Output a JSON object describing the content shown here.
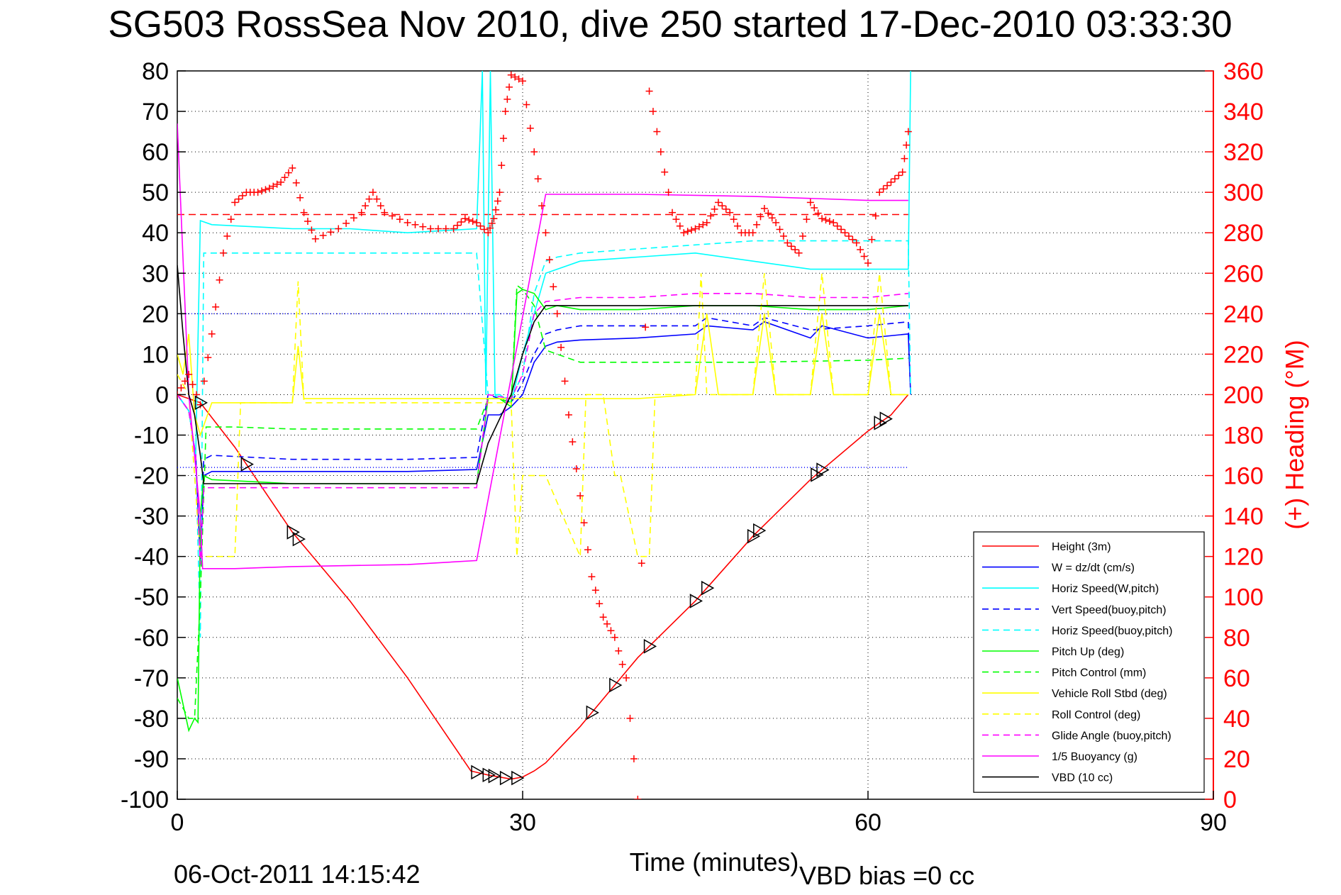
{
  "chart_data": {
    "type": "line",
    "title": "SG503 RossSea Nov 2010, dive 250 started 17-Dec-2010 03:33:30",
    "xlabel": "Time (minutes)",
    "ylabel_right": "(+) Heading (°M)",
    "xlim": [
      0,
      90
    ],
    "ylim": [
      -100,
      80
    ],
    "ylim_right": [
      0,
      360
    ],
    "xticks": [
      "0",
      "30",
      "60",
      "90"
    ],
    "yticks": [
      "80",
      "70",
      "60",
      "50",
      "40",
      "30",
      "20",
      "10",
      "0",
      "-10",
      "-20",
      "-30",
      "-40",
      "-50",
      "-60",
      "-70",
      "-80",
      "-90",
      "-100"
    ],
    "yticks_right": [
      "360",
      "340",
      "320",
      "300",
      "280",
      "260",
      "240",
      "220",
      "200",
      "180",
      "160",
      "140",
      "120",
      "100",
      "80",
      "60",
      "40",
      "20",
      "0"
    ],
    "grid": "dotted, on",
    "legend_position": "bottom-right",
    "footer_left": "06-Oct-2011 14:15:42",
    "footer_right": "VBD bias =0 cc",
    "reference_lines": [
      {
        "series": "heading-target",
        "axis": "right",
        "value": 289,
        "color": "#ff0000",
        "dash": true
      },
      {
        "series": "horizontal-guide",
        "axis": "left",
        "value": 20,
        "color": "#0000ff",
        "dotted": true
      },
      {
        "series": "horizontal-guide",
        "axis": "left",
        "value": -18,
        "color": "#0000ff",
        "dotted": true
      }
    ],
    "series": [
      {
        "name": "Height (3m)",
        "color": "#ff0000",
        "dash": false,
        "x": [
          0,
          1,
          2,
          5,
          10,
          15,
          20,
          25.5,
          27,
          29,
          30,
          31,
          32,
          35,
          40,
          45,
          50,
          55,
          60,
          62,
          63.5
        ],
        "y": [
          0,
          -1,
          -2,
          -13,
          -34,
          -51,
          -70,
          -93,
          -94,
          -95,
          -94.5,
          -93,
          -91,
          -82,
          -65,
          -51,
          -35,
          -21,
          -9,
          -5,
          0
        ]
      },
      {
        "name": "W = dz/dt (cm/s)",
        "color": "#0000ff",
        "dash": false,
        "x": [
          0,
          1,
          1.6,
          2,
          2.3,
          3,
          10,
          20,
          26,
          27,
          28,
          29,
          30,
          31,
          32,
          33,
          35,
          40,
          45,
          46,
          50,
          51,
          55,
          56,
          60,
          63.5,
          63.7
        ],
        "y": [
          0,
          -4,
          -15,
          -42,
          -20,
          -19,
          -19,
          -19,
          -18.5,
          -5,
          -5,
          -3,
          0,
          8,
          12,
          13,
          13.5,
          14,
          15,
          17,
          16,
          18,
          14,
          17,
          14,
          15,
          0
        ]
      },
      {
        "name": "Horiz Speed(W,pitch)",
        "color": "#00ffff",
        "dash": false,
        "x": [
          0,
          1,
          1.6,
          2,
          3,
          10,
          15,
          20,
          26,
          26.5,
          26.8,
          27.2,
          27.6,
          28,
          29,
          30,
          31,
          32,
          35,
          40,
          45,
          50,
          55,
          60,
          63.5,
          63.7
        ],
        "y": [
          0,
          -4,
          -15,
          43,
          42,
          41,
          41,
          40,
          41,
          80,
          0,
          80,
          0,
          0,
          -2,
          10,
          20,
          30,
          33,
          34,
          35,
          33,
          31,
          31,
          31,
          80
        ]
      },
      {
        "name": "Vert Speed(buoy,pitch)",
        "color": "#0000ff",
        "dash": true,
        "x": [
          0,
          1,
          1.6,
          2,
          2.3,
          3,
          10,
          20,
          26,
          27,
          29,
          30,
          31,
          32,
          33,
          35,
          40,
          45,
          46,
          50,
          51,
          55,
          60,
          63.5,
          63.7
        ],
        "y": [
          0,
          -4,
          -15,
          -40,
          -16,
          -15,
          -16,
          -16,
          -15.5,
          0,
          -2,
          3,
          10,
          15,
          16,
          17,
          17,
          17,
          19,
          17,
          19,
          16,
          17,
          18,
          0
        ]
      },
      {
        "name": "Horiz Speed(buoy,pitch)",
        "color": "#00ffff",
        "dash": true,
        "x": [
          0,
          1,
          1.6,
          2,
          2.3,
          3,
          10,
          20,
          26,
          27,
          29,
          30,
          31,
          32,
          33,
          35,
          40,
          45,
          50,
          55,
          60,
          63.5,
          63.7
        ],
        "y": [
          0,
          -4,
          -15,
          -60,
          35,
          35,
          35,
          35,
          35,
          0,
          -1,
          5,
          25,
          33,
          34,
          35,
          36,
          37,
          38,
          38,
          38,
          38,
          0
        ]
      },
      {
        "name": "Pitch Up (deg)",
        "color": "#00ff00",
        "dash": false,
        "x": [
          0,
          1,
          1.5,
          1.8,
          2,
          2.3,
          3,
          10,
          20,
          26,
          27,
          28,
          29,
          29.5,
          30,
          31,
          32,
          33,
          35,
          40,
          45,
          50,
          55,
          60,
          63.5
        ],
        "y": [
          -70,
          -83,
          -80,
          -81,
          -30,
          -20,
          -21,
          -22,
          -22,
          -22,
          -1,
          -1,
          -3,
          25,
          26,
          25,
          21,
          22,
          21,
          21,
          22,
          22,
          21,
          21,
          22
        ]
      },
      {
        "name": "Pitch Control (mm)",
        "color": "#00ff00",
        "dash": true,
        "x": [
          0,
          1,
          1.5,
          2,
          2.5,
          5,
          10,
          20,
          26,
          27,
          28,
          29,
          29.5,
          30,
          31,
          32,
          35,
          40,
          50,
          60,
          63.5
        ],
        "y": [
          -75,
          -80,
          -80,
          -50,
          -8,
          -8,
          -8.5,
          -8.5,
          -8.5,
          -1,
          -1,
          -2,
          27,
          26,
          22,
          11,
          8,
          8,
          8,
          8.5,
          9
        ]
      },
      {
        "name": "Vehicle Roll Stbd (deg)",
        "color": "#ffff00",
        "dash": false,
        "x": [
          0,
          0.5,
          1,
          1.5,
          2,
          3,
          5,
          10,
          10.5,
          11,
          20,
          26,
          28,
          29,
          30,
          35,
          40,
          45,
          46,
          47,
          50,
          51,
          52,
          55,
          56,
          57,
          60,
          61,
          62,
          63.5
        ],
        "y": [
          10,
          5,
          15,
          -5,
          -10,
          -2,
          -2,
          -2,
          12,
          -1,
          -1,
          -1,
          -1,
          -1,
          -1,
          -1,
          -1,
          0,
          20,
          0,
          0,
          20,
          0,
          0,
          20,
          0,
          0,
          20,
          0,
          0
        ]
      },
      {
        "name": "Roll Control (deg)",
        "color": "#ffff00",
        "dash": true,
        "x": [
          0,
          1,
          2,
          3,
          5,
          5.5,
          10,
          10.5,
          11,
          20,
          26,
          29,
          29.5,
          30,
          32,
          35,
          35.5,
          37,
          38,
          38.5,
          40,
          41,
          41.5,
          45,
          45.5,
          46,
          50,
          51,
          52,
          55,
          56,
          57,
          60,
          61,
          62,
          63.5
        ],
        "y": [
          5,
          0,
          -40,
          -40,
          -40,
          -2,
          -2,
          28,
          -2,
          -2,
          -2,
          -2,
          -40,
          -20,
          -20,
          -40,
          0,
          0,
          -20,
          -20,
          -40,
          -40,
          0,
          0,
          30,
          0,
          0,
          30,
          0,
          0,
          30,
          0,
          0,
          30,
          0,
          0
        ]
      },
      {
        "name": "Glide Angle (buoy,pitch)",
        "color": "#ff00ff",
        "dash": true,
        "x": [
          0,
          1,
          1.6,
          2,
          2.3,
          3,
          10,
          20,
          26,
          27,
          29,
          30,
          31,
          32,
          35,
          40,
          45,
          50,
          55,
          60,
          63.5
        ],
        "y": [
          0,
          -4,
          -15,
          -42,
          -23,
          -23,
          -23,
          -23,
          -23,
          0,
          -1,
          5,
          20,
          23,
          24,
          24,
          25,
          25,
          24,
          24,
          25
        ]
      },
      {
        "name": "1/5 Buoyancy (g)",
        "color": "#ff00ff",
        "dash": false,
        "x": [
          0,
          1,
          2,
          2.2,
          5,
          10,
          20,
          26,
          32,
          40,
          50,
          60,
          63.5
        ],
        "y": [
          67,
          0,
          -30,
          -43,
          -43,
          -42.5,
          -42,
          -41,
          49.5,
          49.5,
          49,
          48,
          48
        ]
      },
      {
        "name": "VBD (10 cc)",
        "color": "#000000",
        "dash": false,
        "x": [
          0,
          0.5,
          1,
          1.5,
          2,
          2.3,
          3,
          10,
          20,
          26,
          27,
          29,
          30,
          31,
          32,
          35,
          40,
          50,
          60,
          63.5
        ],
        "y": [
          32,
          15,
          0,
          -5,
          -15,
          -22,
          -22,
          -22,
          -22,
          -22,
          -12,
          0,
          10,
          18,
          22,
          22,
          22,
          22,
          22,
          22
        ]
      }
    ],
    "heading": {
      "name": "(+) Heading",
      "axis": "right",
      "color": "#ff0000",
      "marker": "+",
      "x": [
        0,
        1,
        2,
        3,
        4,
        5,
        6,
        7,
        8,
        9,
        10,
        11,
        12,
        14,
        16,
        17,
        18,
        20,
        22,
        24,
        25,
        26,
        27,
        27.5,
        28,
        28.5,
        29,
        30,
        31,
        32,
        33,
        34,
        35,
        36,
        37,
        38,
        39,
        40,
        41,
        42,
        43,
        44,
        45,
        46,
        47,
        48,
        49,
        50,
        51,
        52,
        53,
        54,
        55,
        56,
        57,
        58,
        59,
        60,
        61,
        62,
        63,
        63.5
      ],
      "y": [
        200,
        210,
        195,
        230,
        270,
        295,
        300,
        300,
        302,
        305,
        312,
        290,
        277,
        282,
        290,
        300,
        290,
        285,
        282,
        282,
        287,
        285,
        280,
        287,
        300,
        340,
        358,
        355,
        320,
        280,
        240,
        190,
        150,
        110,
        90,
        80,
        60,
        0,
        350,
        320,
        290,
        280,
        282,
        285,
        295,
        290,
        280,
        280,
        292,
        285,
        275,
        270,
        295,
        287,
        285,
        280,
        275,
        265,
        300,
        305,
        310,
        330
      ]
    },
    "triangle_markers": {
      "series": "Height (3m)",
      "color": "#000000",
      "x": [
        2,
        6,
        10,
        10.5,
        26,
        27,
        27.5,
        28.5,
        29.5,
        36,
        38,
        41,
        45,
        46,
        50,
        50.5,
        55.5,
        56,
        61,
        61.5
      ]
    }
  }
}
